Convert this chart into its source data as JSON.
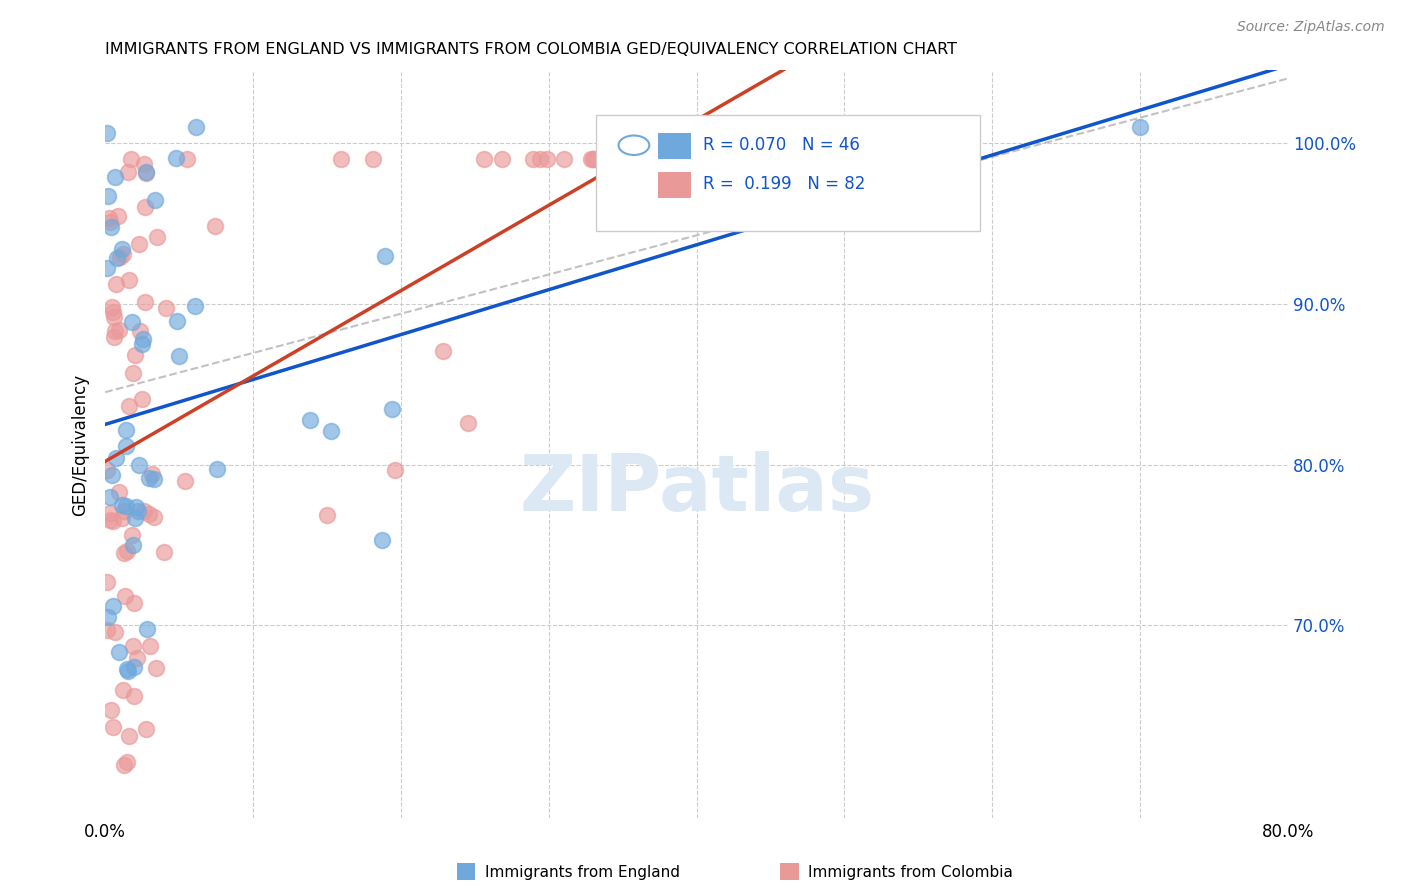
{
  "title": "IMMIGRANTS FROM ENGLAND VS IMMIGRANTS FROM COLOMBIA GED/EQUIVALENCY CORRELATION CHART",
  "source": "Source: ZipAtlas.com",
  "ylabel": "GED/Equivalency",
  "x_min": 0.0,
  "x_max": 0.8,
  "y_min": 0.58,
  "y_max": 1.045,
  "england_R": 0.07,
  "england_N": 46,
  "colombia_R": 0.199,
  "colombia_N": 82,
  "england_color": "#6fa8dc",
  "colombia_color": "#ea9999",
  "england_line_color": "#1155cc",
  "colombia_line_color": "#cc4125",
  "dashed_line_color": "#bbbbbb",
  "legend_text_color": "#1155cc",
  "title_color": "#000000",
  "watermark_color": "#dce9f5",
  "background_color": "#ffffff",
  "grid_color": "#cccccc"
}
